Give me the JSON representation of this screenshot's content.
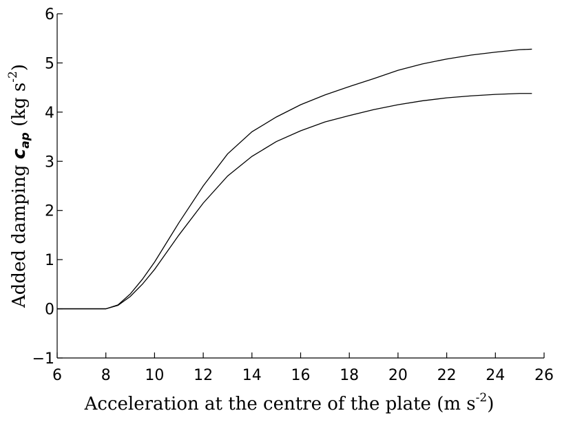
{
  "chart_data": {
    "type": "line",
    "xlabel": [
      "Acceleration at the centre of the plate (m s",
      "-2",
      ")"
    ],
    "ylabel": [
      "Added damping ",
      "c",
      "ap",
      " (kg s",
      "-2",
      ")"
    ],
    "x": [
      6,
      8,
      8.5,
      9,
      9.5,
      10,
      11,
      12,
      13,
      14,
      15,
      16,
      17,
      18,
      19,
      20,
      21,
      22,
      23,
      24,
      25,
      25.5
    ],
    "series": [
      {
        "color": "#000000",
        "values": [
          0,
          0,
          0.08,
          0.3,
          0.6,
          0.95,
          1.75,
          2.5,
          3.15,
          3.6,
          3.9,
          4.15,
          4.35,
          4.52,
          4.68,
          4.85,
          4.98,
          5.08,
          5.16,
          5.22,
          5.27,
          5.28
        ]
      },
      {
        "color": "#000000",
        "values": [
          0,
          0,
          0.07,
          0.25,
          0.5,
          0.8,
          1.5,
          2.15,
          2.7,
          3.1,
          3.4,
          3.62,
          3.8,
          3.93,
          4.05,
          4.15,
          4.23,
          4.29,
          4.33,
          4.36,
          4.38,
          4.38
        ]
      }
    ],
    "xlim": [
      6,
      26
    ],
    "xticks": [
      6,
      8,
      10,
      12,
      14,
      16,
      18,
      20,
      22,
      24,
      26
    ],
    "ylim": [
      -1,
      6
    ],
    "yticks": [
      {
        "value": -1,
        "label": "−1"
      },
      0,
      1,
      2,
      3,
      4,
      5,
      6
    ]
  }
}
